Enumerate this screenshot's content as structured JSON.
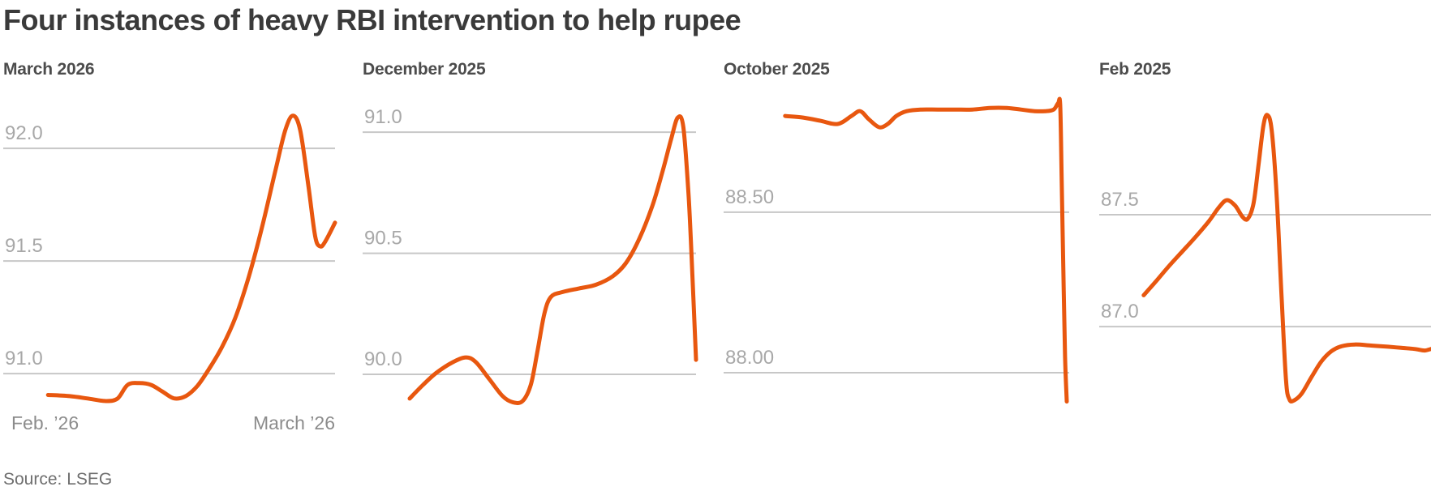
{
  "title": "Four instances of heavy RBI intervention to help rupee",
  "source": "Source: LSEG",
  "colors": {
    "line": "#E8570F",
    "gridline": "#C7C7C7",
    "y_axis_label": "#A8A8A8",
    "x_axis_label": "#8C8C8C",
    "title_text": "#3A3A3A",
    "panel_title_text": "#4C4C4C",
    "source_text": "#6E6E6E",
    "background": "#FFFFFF"
  },
  "chart_data": {
    "type": "line",
    "title": "Four instances of heavy RBI intervention to help rupee",
    "source": "Source: LSEG",
    "legend": "none",
    "grid": "horizontal-only",
    "panels": [
      {
        "title": "March 2026",
        "x_labels": [
          "Feb. ’26",
          "March ’26"
        ],
        "ylim": [
          90.86,
          92.245
        ],
        "gridlines": [
          {
            "value": 92.0,
            "label": "92.0"
          },
          {
            "value": 91.5,
            "label": "91.5"
          },
          {
            "value": 91.0,
            "label": "91.0"
          }
        ],
        "series": [
          [
            0.135,
            90.905
          ],
          [
            0.2,
            90.9
          ],
          [
            0.26,
            90.888
          ],
          [
            0.31,
            90.878
          ],
          [
            0.345,
            90.89
          ],
          [
            0.375,
            90.95
          ],
          [
            0.41,
            90.958
          ],
          [
            0.445,
            90.95
          ],
          [
            0.48,
            90.92
          ],
          [
            0.515,
            90.89
          ],
          [
            0.55,
            90.9
          ],
          [
            0.585,
            90.945
          ],
          [
            0.62,
            91.02
          ],
          [
            0.66,
            91.12
          ],
          [
            0.7,
            91.25
          ],
          [
            0.74,
            91.43
          ],
          [
            0.78,
            91.65
          ],
          [
            0.82,
            91.9
          ],
          [
            0.85,
            92.08
          ],
          [
            0.873,
            92.145
          ],
          [
            0.895,
            92.08
          ],
          [
            0.92,
            91.83
          ],
          [
            0.94,
            91.61
          ],
          [
            0.955,
            91.565
          ],
          [
            0.97,
            91.585
          ],
          [
            1.0,
            91.67
          ]
        ]
      },
      {
        "title": "December 2025",
        "x_labels": [],
        "ylim": [
          89.873,
          91.161
        ],
        "gridlines": [
          {
            "value": 91.0,
            "label": "91.0"
          },
          {
            "value": 90.5,
            "label": "90.5"
          },
          {
            "value": 90.0,
            "label": "90.0"
          }
        ],
        "series": [
          [
            0.141,
            89.9
          ],
          [
            0.18,
            89.955
          ],
          [
            0.22,
            90.005
          ],
          [
            0.27,
            90.05
          ],
          [
            0.31,
            90.07
          ],
          [
            0.34,
            90.05
          ],
          [
            0.38,
            89.98
          ],
          [
            0.42,
            89.91
          ],
          [
            0.45,
            89.885
          ],
          [
            0.48,
            89.89
          ],
          [
            0.505,
            89.96
          ],
          [
            0.525,
            90.1
          ],
          [
            0.545,
            90.25
          ],
          [
            0.565,
            90.32
          ],
          [
            0.6,
            90.34
          ],
          [
            0.65,
            90.355
          ],
          [
            0.7,
            90.37
          ],
          [
            0.75,
            90.405
          ],
          [
            0.79,
            90.46
          ],
          [
            0.83,
            90.56
          ],
          [
            0.87,
            90.7
          ],
          [
            0.9,
            90.84
          ],
          [
            0.925,
            90.97
          ],
          [
            0.945,
            91.06
          ],
          [
            0.962,
            91.02
          ],
          [
            0.978,
            90.73
          ],
          [
            0.99,
            90.38
          ],
          [
            1.0,
            90.06
          ]
        ]
      },
      {
        "title": "October 2025",
        "x_labels": [],
        "ylim": [
          87.899,
          88.871
        ],
        "gridlines": [
          {
            "value": 88.5,
            "label": "88.50"
          },
          {
            "value": 88.0,
            "label": "88.00"
          }
        ],
        "series": [
          [
            0.178,
            88.8
          ],
          [
            0.23,
            88.795
          ],
          [
            0.28,
            88.785
          ],
          [
            0.33,
            88.775
          ],
          [
            0.37,
            88.8
          ],
          [
            0.395,
            88.815
          ],
          [
            0.42,
            88.79
          ],
          [
            0.45,
            88.765
          ],
          [
            0.475,
            88.775
          ],
          [
            0.5,
            88.8
          ],
          [
            0.53,
            88.815
          ],
          [
            0.57,
            88.82
          ],
          [
            0.62,
            88.82
          ],
          [
            0.67,
            88.82
          ],
          [
            0.72,
            88.82
          ],
          [
            0.77,
            88.825
          ],
          [
            0.82,
            88.825
          ],
          [
            0.86,
            88.82
          ],
          [
            0.9,
            88.815
          ],
          [
            0.93,
            88.815
          ],
          [
            0.955,
            88.82
          ],
          [
            0.968,
            88.84
          ],
          [
            0.974,
            88.835
          ],
          [
            0.978,
            88.62
          ],
          [
            0.983,
            88.32
          ],
          [
            0.988,
            88.05
          ],
          [
            0.993,
            87.91
          ]
        ]
      },
      {
        "title": "Feb 2025",
        "x_labels": [],
        "ylim": [
          86.649,
          88.043
        ],
        "gridlines": [
          {
            "value": 87.5,
            "label": "87.5"
          },
          {
            "value": 87.0,
            "label": "87.0"
          }
        ],
        "series": [
          [
            0.134,
            87.14
          ],
          [
            0.17,
            87.2
          ],
          [
            0.21,
            87.27
          ],
          [
            0.25,
            87.335
          ],
          [
            0.29,
            87.4
          ],
          [
            0.33,
            87.47
          ],
          [
            0.362,
            87.535
          ],
          [
            0.385,
            87.565
          ],
          [
            0.41,
            87.54
          ],
          [
            0.432,
            87.49
          ],
          [
            0.448,
            87.482
          ],
          [
            0.465,
            87.55
          ],
          [
            0.48,
            87.72
          ],
          [
            0.495,
            87.9
          ],
          [
            0.507,
            87.945
          ],
          [
            0.52,
            87.875
          ],
          [
            0.535,
            87.58
          ],
          [
            0.55,
            87.12
          ],
          [
            0.563,
            86.76
          ],
          [
            0.573,
            86.675
          ],
          [
            0.587,
            86.67
          ],
          [
            0.61,
            86.7
          ],
          [
            0.64,
            86.775
          ],
          [
            0.67,
            86.845
          ],
          [
            0.7,
            86.89
          ],
          [
            0.73,
            86.912
          ],
          [
            0.77,
            86.92
          ],
          [
            0.82,
            86.915
          ],
          [
            0.87,
            86.91
          ],
          [
            0.91,
            86.905
          ],
          [
            0.95,
            86.9
          ],
          [
            0.98,
            86.893
          ],
          [
            1.0,
            86.9
          ]
        ]
      }
    ]
  }
}
